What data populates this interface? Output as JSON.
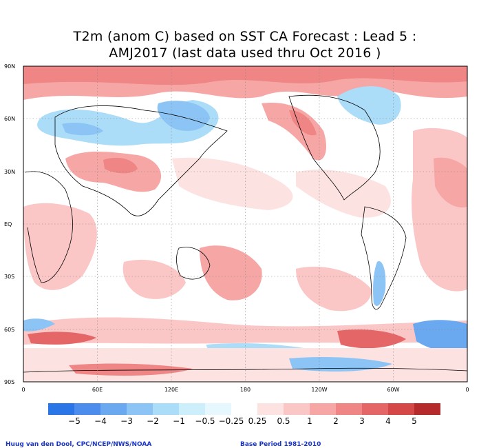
{
  "title_line1": "T2m (anom C) based on SST CA Forecast : Lead 5 :",
  "title_line2": "AMJ2017 (last data used thru Oct 2016 )",
  "lat_labels": [
    "90N",
    "60N",
    "30N",
    "EQ",
    "30S",
    "60S",
    "90S"
  ],
  "lon_labels": [
    "0",
    "60E",
    "120E",
    "180",
    "120W",
    "60W",
    "0"
  ],
  "legend": {
    "colors": [
      "#2a76e6",
      "#4b8cec",
      "#6aa8f0",
      "#8cc4f5",
      "#abdcf8",
      "#cdeefb",
      "#e6f8fd",
      "#ffffff",
      "#fde2e2",
      "#fbc6c6",
      "#f7a6a6",
      "#ef8585",
      "#e46666",
      "#d44848",
      "#b52a2a"
    ],
    "labels": [
      "−5",
      "−4",
      "−3",
      "−2",
      "−1",
      "−0.5",
      "−0.25",
      "0.25",
      "0.5",
      "1",
      "2",
      "3",
      "4",
      "5"
    ]
  },
  "credit_left": "Huug van den Dool, CPC/NCEP/NWS/NOAA",
  "credit_right": "Base Period 1981-2010"
}
